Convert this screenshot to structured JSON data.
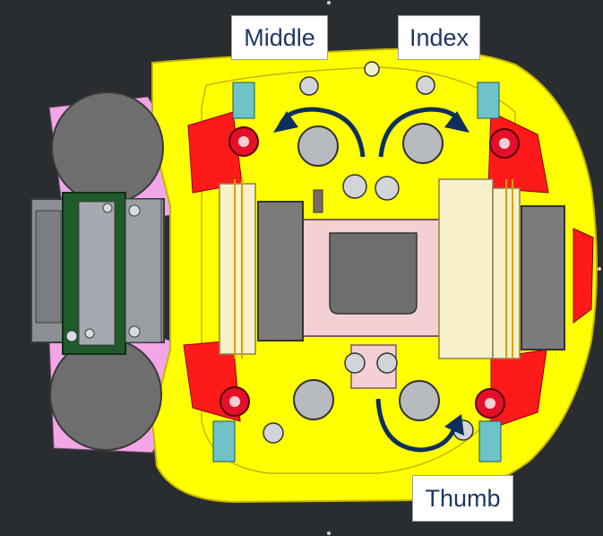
{
  "labels": {
    "middle": "Middle",
    "index": "Index",
    "thumb": "Thumb"
  },
  "colors": {
    "background": "#2a2d30",
    "frame": "#ffff00",
    "frame_edge": "#c8b400",
    "side_panels": "#ff2a2a",
    "arrows": "#0e2f5e",
    "label_text": "#1f3864",
    "motor_body": "#6e6e6e",
    "pcb": "#1f5a2a",
    "pink_mount": "#f2a6e6"
  },
  "arrow_icons": [
    "curved-arrow-ccw-icon",
    "curved-arrow-cw-icon",
    "curved-arrow-thumb-icon"
  ]
}
